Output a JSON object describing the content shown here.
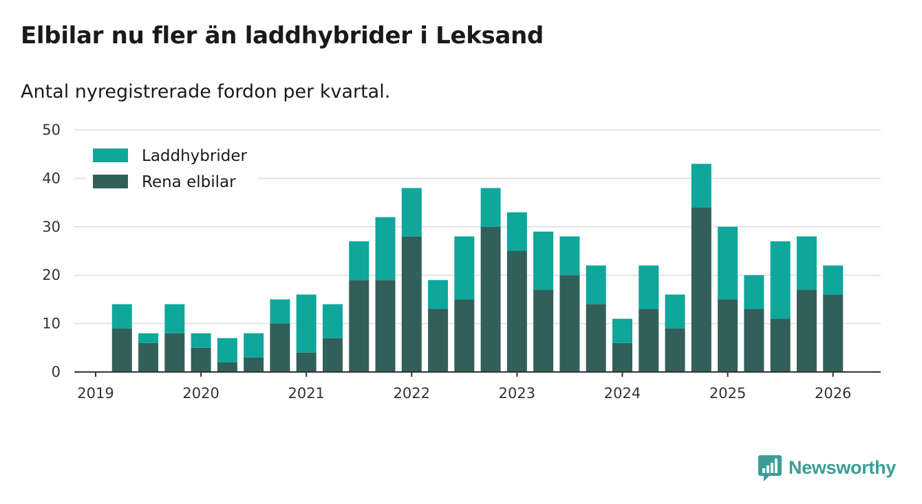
{
  "title": "Elbilar nu fler än laddhybrider i Leksand",
  "subtitle": "Antal nyregistrerade fordon per kvartal.",
  "brand": {
    "name": "Newsworthy",
    "icon": "newsworthy-logo-icon",
    "color": "#3a9e97"
  },
  "chart_data": {
    "type": "bar",
    "stacked": true,
    "title": "Elbilar nu fler än laddhybrider i Leksand",
    "subtitle": "Antal nyregistrerade fordon per kvartal.",
    "xlabel": "",
    "ylabel": "",
    "ylim": [
      0,
      50
    ],
    "yticks": [
      0,
      10,
      20,
      30,
      40,
      50
    ],
    "xlim": [
      2019,
      2026.5
    ],
    "xticks": [
      2019,
      2020,
      2021,
      2022,
      2023,
      2024,
      2025,
      2026
    ],
    "grid": true,
    "legend_position": "top-left",
    "categories": [
      "2019 Q2",
      "2019 Q3",
      "2019 Q4",
      "2020 Q1",
      "2020 Q2",
      "2020 Q3",
      "2020 Q4",
      "2021 Q1",
      "2021 Q2",
      "2021 Q3",
      "2021 Q4",
      "2022 Q1",
      "2022 Q2",
      "2022 Q3",
      "2022 Q4",
      "2023 Q1",
      "2023 Q2",
      "2023 Q3",
      "2023 Q4",
      "2024 Q1",
      "2024 Q2",
      "2024 Q3",
      "2024 Q4",
      "2025 Q1",
      "2025 Q2",
      "2025 Q3",
      "2025 Q4",
      "2026 Q1"
    ],
    "x": [
      2019.25,
      2019.5,
      2019.75,
      2020.0,
      2020.25,
      2020.5,
      2020.75,
      2021.0,
      2021.25,
      2021.5,
      2021.75,
      2022.0,
      2022.25,
      2022.5,
      2022.75,
      2023.0,
      2023.25,
      2023.5,
      2023.75,
      2024.0,
      2024.25,
      2024.5,
      2024.75,
      2025.0,
      2025.25,
      2025.5,
      2025.75,
      2026.0
    ],
    "series": [
      {
        "name": "Rena elbilar",
        "color": "#335f5a",
        "values": [
          9,
          6,
          8,
          5,
          2,
          3,
          10,
          4,
          7,
          19,
          19,
          28,
          13,
          15,
          30,
          25,
          17,
          20,
          14,
          6,
          13,
          9,
          34,
          15,
          13,
          11,
          17,
          16
        ]
      },
      {
        "name": "Laddhybrider",
        "color": "#0fa69b",
        "values": [
          5,
          2,
          6,
          3,
          5,
          5,
          5,
          12,
          7,
          8,
          13,
          10,
          6,
          13,
          8,
          8,
          12,
          8,
          8,
          5,
          9,
          7,
          9,
          15,
          7,
          16,
          11,
          6
        ]
      }
    ],
    "legend": [
      "Laddhybrider",
      "Rena elbilar"
    ]
  }
}
